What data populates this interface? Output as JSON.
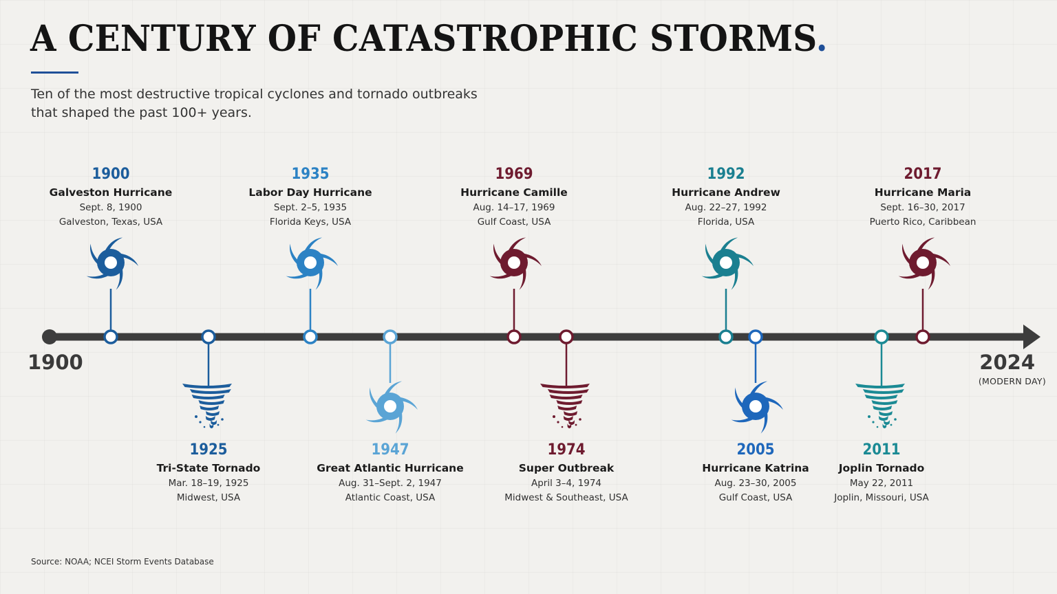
{
  "header": {
    "title": "A CENTURY OF CATASTROPHIC STORMS",
    "title_dot": ".",
    "subtitle": "Ten of the most destructive tropical cyclones and tornado outbreaks that shaped the past 100+ years.",
    "accent_color": "#1f4f98"
  },
  "timeline": {
    "start_label": "1900",
    "end_label": "2024",
    "end_note": "(MODERN DAY)",
    "line_color": "#3d3d3d"
  },
  "events": [
    {
      "year": "1900",
      "name": "Galveston Hurricane",
      "date": "Sept. 8, 1900",
      "place": "Galveston, Texas, USA",
      "type": "hurricane",
      "position": "above",
      "color": "#1c5d9c",
      "icon": "hurricane-icon"
    },
    {
      "year": "1925",
      "name": "Tri-State Tornado",
      "date": "Mar. 18–19, 1925",
      "place": "Midwest, USA",
      "type": "tornado",
      "position": "below",
      "color": "#1c5d9c",
      "icon": "tornado-icon"
    },
    {
      "year": "1935",
      "name": "Labor Day Hurricane",
      "date": "Sept. 2–5, 1935",
      "place": "Florida Keys, USA",
      "type": "hurricane",
      "position": "above",
      "color": "#2c82c4",
      "icon": "hurricane-icon"
    },
    {
      "year": "1947",
      "name": "Great Atlantic Hurricane",
      "date": "Aug. 31–Sept. 2, 1947",
      "place": "Atlantic Coast, USA",
      "type": "hurricane",
      "position": "below",
      "color": "#5aa4d5",
      "icon": "hurricane-icon"
    },
    {
      "year": "1969",
      "name": "Hurricane Camille",
      "date": "Aug. 14–17, 1969",
      "place": "Gulf Coast, USA",
      "type": "hurricane",
      "position": "above",
      "color": "#6e1b2f",
      "icon": "hurricane-icon"
    },
    {
      "year": "1974",
      "name": "Super Outbreak",
      "date": "April 3–4, 1974",
      "place": "Midwest & Southeast, USA",
      "type": "tornado",
      "position": "below",
      "color": "#6e1b2f",
      "icon": "tornado-icon"
    },
    {
      "year": "1992",
      "name": "Hurricane Andrew",
      "date": "Aug. 22–27, 1992",
      "place": "Florida, USA",
      "type": "hurricane",
      "position": "above",
      "color": "#1a7f90",
      "icon": "hurricane-icon"
    },
    {
      "year": "2005",
      "name": "Hurricane Katrina",
      "date": "Aug. 23–30, 2005",
      "place": "Gulf Coast, USA",
      "type": "hurricane",
      "position": "below",
      "color": "#1e67bb",
      "icon": "hurricane-icon"
    },
    {
      "year": "2011",
      "name": "Joplin Tornado",
      "date": "May 22, 2011",
      "place": "Joplin, Missouri, USA",
      "type": "tornado",
      "position": "below",
      "color": "#1b8a94",
      "icon": "tornado-icon"
    },
    {
      "year": "2017",
      "name": "Hurricane Maria",
      "date": "Sept. 16–30, 2017",
      "place": "Puerto Rico, Caribbean",
      "type": "hurricane",
      "position": "above",
      "color": "#6e1b2f",
      "icon": "hurricane-icon"
    }
  ],
  "source": "Source: NOAA; NCEI Storm Events Database"
}
